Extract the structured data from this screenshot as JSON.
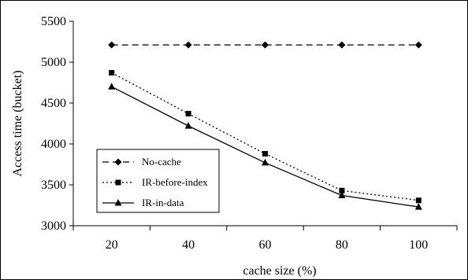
{
  "chart_data": {
    "type": "line",
    "title": "",
    "xlabel": "cache size (%)",
    "ylabel": "Access time (bucket)",
    "x": [
      20,
      40,
      60,
      80,
      100
    ],
    "x_tick_labels": [
      "20",
      "40",
      "60",
      "80",
      "100"
    ],
    "ylim": [
      3000,
      5500
    ],
    "y_ticks": [
      3000,
      3500,
      4000,
      4500,
      5000,
      5500
    ],
    "y_tick_labels": [
      "3000",
      "3500",
      "4000",
      "4500",
      "5000",
      "5500"
    ],
    "grid": false,
    "legend_position": "lower-left",
    "series": [
      {
        "name": "No-cache",
        "values": [
          5210,
          5210,
          5210,
          5210,
          5210
        ],
        "line_style": "dashed",
        "marker": "diamond",
        "color": "#000000"
      },
      {
        "name": "IR-before-index",
        "values": [
          4870,
          4370,
          3880,
          3430,
          3310
        ],
        "line_style": "dotted",
        "marker": "square",
        "color": "#000000"
      },
      {
        "name": "IR-in-data",
        "values": [
          4700,
          4220,
          3770,
          3370,
          3230
        ],
        "line_style": "solid",
        "marker": "triangle",
        "color": "#000000"
      }
    ]
  }
}
